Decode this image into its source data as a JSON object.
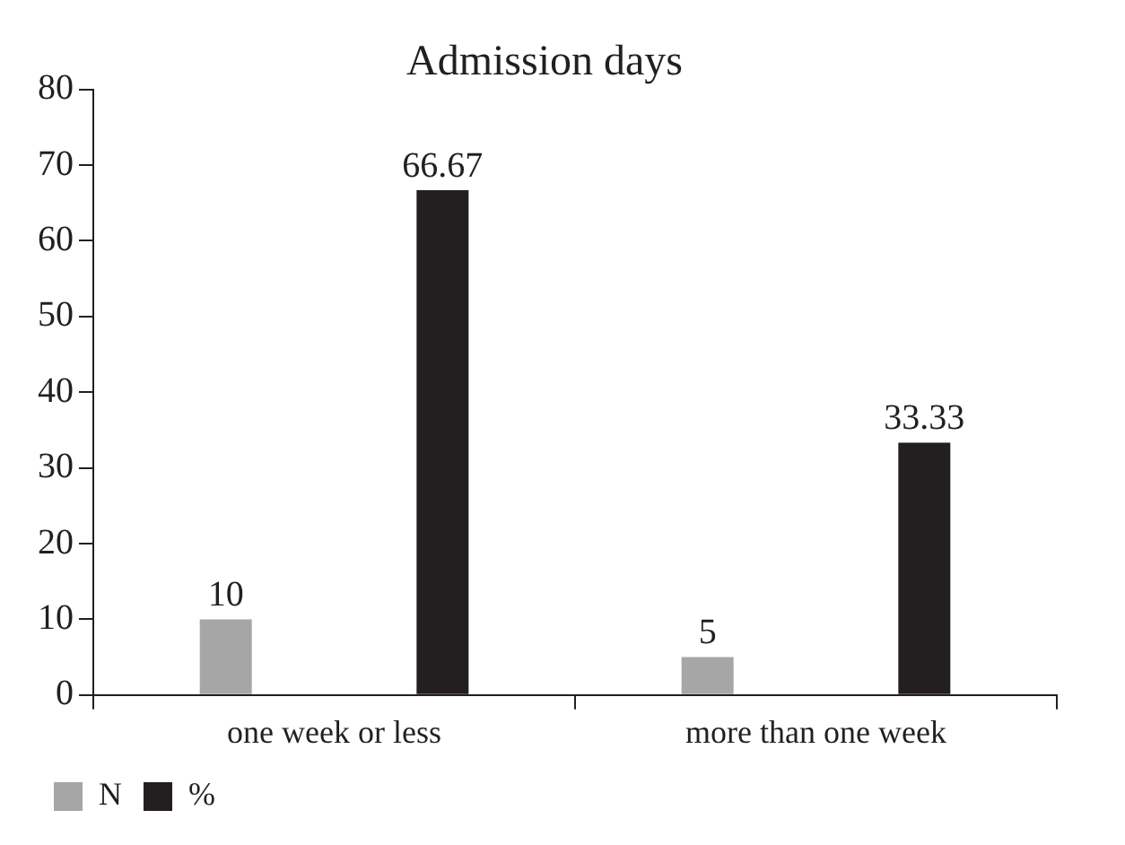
{
  "chart_data": {
    "type": "bar",
    "title": "Admission days",
    "categories": [
      "one week or less",
      "more than one week"
    ],
    "series": [
      {
        "name": "N",
        "color": "#a6a6a6",
        "values": [
          10,
          5
        ]
      },
      {
        "name": "%",
        "color": "#231f20",
        "values": [
          66.67,
          33.33
        ]
      }
    ],
    "ylim": [
      0,
      80
    ],
    "yticks": [
      0,
      10,
      20,
      30,
      40,
      50,
      60,
      70,
      80
    ],
    "grid": false,
    "legend": "bottom",
    "data_labels": true
  }
}
